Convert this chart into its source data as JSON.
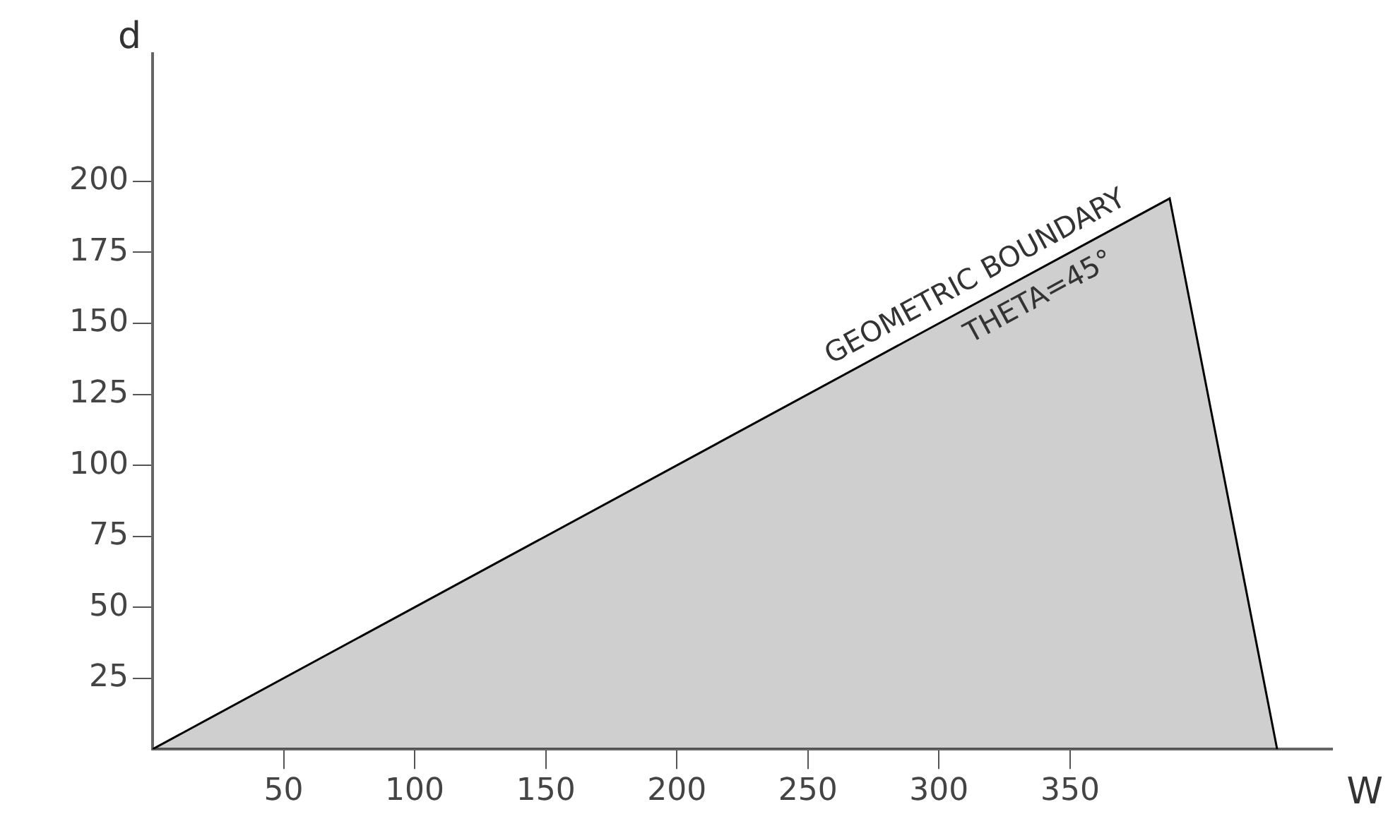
{
  "chart_data": {
    "type": "area",
    "xlabel": "W",
    "ylabel": "d",
    "x": [
      0,
      388,
      429
    ],
    "series": [
      {
        "color": "#000000",
        "values": [
          0,
          194,
          0
        ]
      }
    ],
    "xlim": [
      0,
      450
    ],
    "ylim": [
      0,
      245
    ],
    "xticks": [
      50,
      100,
      150,
      200,
      250,
      300,
      350
    ],
    "yticks": [
      25,
      50,
      75,
      100,
      125,
      150,
      175,
      200
    ],
    "grid": false,
    "legend": false,
    "annotations": [
      "GEOMETRIC BOUNDARY",
      "THETA=45°"
    ]
  }
}
